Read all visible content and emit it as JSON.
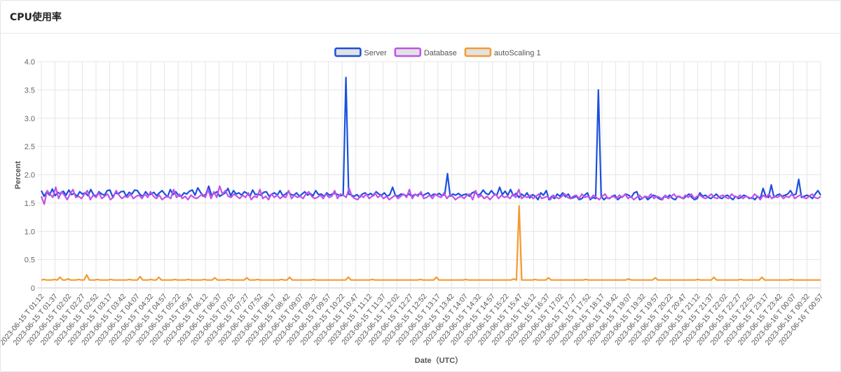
{
  "page": {
    "title": "CPU使用率"
  },
  "chart_data": {
    "type": "line",
    "xlabel": "Date（UTC）",
    "ylabel": "Percent",
    "ylim": [
      0,
      4.0
    ],
    "yticks": [
      "0",
      "0.5",
      "1.0",
      "1.5",
      "2.0",
      "2.5",
      "3.0",
      "3.5",
      "4.0"
    ],
    "grid": true,
    "legend_position": "top-center",
    "x_tick_labels": [
      "2023-06-15 T 01:12",
      "2023-06-15 T 01:37",
      "2023-06-15 T 02:02",
      "2023-06-15 T 02:27",
      "2023-06-15 T 02:52",
      "2023-06-15 T 03:17",
      "2023-06-15 T 03:42",
      "2023-06-15 T 04:07",
      "2023-06-15 T 04:32",
      "2023-06-15 T 04:57",
      "2023-06-15 T 05:22",
      "2023-06-15 T 05:47",
      "2023-06-15 T 06:12",
      "2023-06-15 T 06:37",
      "2023-06-15 T 07:02",
      "2023-06-15 T 07:27",
      "2023-06-15 T 07:52",
      "2023-06-15 T 08:17",
      "2023-06-15 T 08:42",
      "2023-06-15 T 09:07",
      "2023-06-15 T 09:32",
      "2023-06-15 T 09:57",
      "2023-06-15 T 10:22",
      "2023-06-15 T 10:47",
      "2023-06-15 T 11:12",
      "2023-06-15 T 11:37",
      "2023-06-15 T 12:02",
      "2023-06-15 T 12:27",
      "2023-06-15 T 12:52",
      "2023-06-15 T 13:17",
      "2023-06-15 T 13:42",
      "2023-06-15 T 14:07",
      "2023-06-15 T 14:32",
      "2023-06-15 T 14:57",
      "2023-06-15 T 15:22",
      "2023-06-15 T 15:47",
      "2023-06-15 T 16:12",
      "2023-06-15 T 16:37",
      "2023-06-15 T 17:02",
      "2023-06-15 T 17:27",
      "2023-06-15 T 17:52",
      "2023-06-15 T 18:17",
      "2023-06-15 T 18:42",
      "2023-06-15 T 19:07",
      "2023-06-15 T 19:32",
      "2023-06-15 T 19:57",
      "2023-06-15 T 20:22",
      "2023-06-15 T 20:47",
      "2023-06-15 T 21:12",
      "2023-06-15 T 21:37",
      "2023-06-15 T 22:02",
      "2023-06-15 T 22:27",
      "2023-06-15 T 22:52",
      "2023-06-15 T 23:17",
      "2023-06-15 T 23:42",
      "2023-06-16 T 00:07",
      "2023-06-16 T 00:32",
      "2023-06-16 T 00:57"
    ],
    "series": [
      {
        "name": "Server",
        "color": "#1a4fe0",
        "fill": "#e2e2e2",
        "values": [
          1.72,
          1.62,
          1.7,
          1.64,
          1.75,
          1.63,
          1.69,
          1.66,
          1.71,
          1.64,
          1.73,
          1.65,
          1.67,
          1.62,
          1.7,
          1.66,
          1.68,
          1.63,
          1.74,
          1.65,
          1.62,
          1.7,
          1.66,
          1.64,
          1.72,
          1.73,
          1.61,
          1.68,
          1.66,
          1.7,
          1.71,
          1.62,
          1.69,
          1.66,
          1.73,
          1.72,
          1.65,
          1.62,
          1.7,
          1.64,
          1.66,
          1.69,
          1.63,
          1.68,
          1.72,
          1.66,
          1.61,
          1.74,
          1.65,
          1.7,
          1.63,
          1.62,
          1.68,
          1.66,
          1.71,
          1.73,
          1.64,
          1.77,
          1.69,
          1.62,
          1.66,
          1.8,
          1.64,
          1.67,
          1.7,
          1.62,
          1.65,
          1.68,
          1.76,
          1.63,
          1.72,
          1.66,
          1.68,
          1.64,
          1.7,
          1.67,
          1.62,
          1.73,
          1.65,
          1.66,
          1.64,
          1.69,
          1.7,
          1.62,
          1.66,
          1.68,
          1.64,
          1.72,
          1.63,
          1.66,
          1.7,
          1.65,
          1.64,
          1.68,
          1.62,
          1.66,
          1.7,
          1.64,
          1.67,
          1.63,
          1.72,
          1.65,
          1.66,
          1.62,
          1.68,
          1.64,
          1.66,
          1.67,
          1.65,
          1.63,
          1.64,
          3.72,
          1.66,
          1.64,
          1.62,
          1.65,
          1.6,
          1.66,
          1.68,
          1.64,
          1.67,
          1.63,
          1.7,
          1.66,
          1.64,
          1.68,
          1.62,
          1.65,
          1.78,
          1.64,
          1.62,
          1.66,
          1.65,
          1.63,
          1.66,
          1.62,
          1.65,
          1.64,
          1.67,
          1.63,
          1.66,
          1.68,
          1.62,
          1.66,
          1.64,
          1.67,
          1.63,
          1.65,
          2.02,
          1.62,
          1.66,
          1.64,
          1.67,
          1.63,
          1.65,
          1.66,
          1.62,
          1.68,
          1.7,
          1.64,
          1.66,
          1.73,
          1.67,
          1.65,
          1.72,
          1.66,
          1.64,
          1.78,
          1.65,
          1.71,
          1.64,
          1.74,
          1.63,
          1.67,
          1.6,
          1.66,
          1.62,
          1.68,
          1.59,
          1.65,
          1.62,
          1.56,
          1.68,
          1.64,
          1.72,
          1.56,
          1.62,
          1.58,
          1.66,
          1.62,
          1.68,
          1.61,
          1.66,
          1.58,
          1.6,
          1.62,
          1.56,
          1.58,
          1.64,
          1.68,
          1.56,
          1.6,
          1.58,
          3.5,
          1.62,
          1.56,
          1.6,
          1.58,
          1.62,
          1.64,
          1.56,
          1.6,
          1.62,
          1.66,
          1.64,
          1.6,
          1.68,
          1.7,
          1.56,
          1.58,
          1.62,
          1.56,
          1.6,
          1.64,
          1.62,
          1.58,
          1.56,
          1.62,
          1.6,
          1.64,
          1.58,
          1.56,
          1.62,
          1.6,
          1.58,
          1.62,
          1.66,
          1.6,
          1.56,
          1.58,
          1.68,
          1.62,
          1.64,
          1.6,
          1.58,
          1.62,
          1.66,
          1.6,
          1.58,
          1.62,
          1.64,
          1.6,
          1.56,
          1.62,
          1.58,
          1.6,
          1.64,
          1.62,
          1.58,
          1.6,
          1.56,
          1.62,
          1.58,
          1.76,
          1.62,
          1.6,
          1.82,
          1.6,
          1.64,
          1.66,
          1.62,
          1.64,
          1.66,
          1.72,
          1.64,
          1.66,
          1.92,
          1.6,
          1.62,
          1.64,
          1.62,
          1.58,
          1.66,
          1.72,
          1.64
        ]
      },
      {
        "name": "Database",
        "color": "#c053e8",
        "fill": "#e2e2e2",
        "values": [
          1.62,
          1.48,
          1.72,
          1.66,
          1.6,
          1.78,
          1.58,
          1.7,
          1.64,
          1.56,
          1.66,
          1.74,
          1.6,
          1.62,
          1.58,
          1.66,
          1.72,
          1.56,
          1.64,
          1.6,
          1.68,
          1.58,
          1.62,
          1.66,
          1.56,
          1.6,
          1.72,
          1.64,
          1.58,
          1.62,
          1.6,
          1.66,
          1.58,
          1.62,
          1.64,
          1.58,
          1.66,
          1.6,
          1.7,
          1.62,
          1.58,
          1.64,
          1.56,
          1.6,
          1.62,
          1.58,
          1.74,
          1.6,
          1.66,
          1.58,
          1.62,
          1.56,
          1.64,
          1.6,
          1.58,
          1.62,
          1.66,
          1.6,
          1.74,
          1.58,
          1.7,
          1.6,
          1.8,
          1.66,
          1.72,
          1.62,
          1.6,
          1.66,
          1.62,
          1.58,
          1.64,
          1.6,
          1.68,
          1.56,
          1.62,
          1.6,
          1.74,
          1.58,
          1.62,
          1.56,
          1.66,
          1.6,
          1.64,
          1.58,
          1.62,
          1.6,
          1.72,
          1.58,
          1.64,
          1.6,
          1.62,
          1.58,
          1.66,
          1.7,
          1.62,
          1.58,
          1.6,
          1.64,
          1.58,
          1.66,
          1.6,
          1.62,
          1.72,
          1.58,
          1.66,
          1.64,
          1.6,
          1.76,
          1.62,
          1.58,
          1.56,
          1.64,
          1.6,
          1.66,
          1.58,
          1.62,
          1.68,
          1.6,
          1.64,
          1.58,
          1.62,
          1.56,
          1.6,
          1.64,
          1.58,
          1.62,
          1.66,
          1.6,
          1.74,
          1.58,
          1.66,
          1.62,
          1.7,
          1.58,
          1.6,
          1.64,
          1.58,
          1.66,
          1.62,
          1.6,
          1.68,
          1.58,
          1.64,
          1.62,
          1.56,
          1.6,
          1.62,
          1.58,
          1.64,
          1.66,
          1.56,
          1.72,
          1.6,
          1.64,
          1.58,
          1.62,
          1.56,
          1.62,
          1.66,
          1.58,
          1.64,
          1.6,
          1.62,
          1.58,
          1.66,
          1.6,
          1.74,
          1.58,
          1.62,
          1.6,
          1.64,
          1.58,
          1.62,
          1.66,
          1.58,
          1.6,
          1.62,
          1.56,
          1.64,
          1.6,
          1.58,
          1.62,
          1.66,
          1.6,
          1.58,
          1.62,
          1.64,
          1.58,
          1.66,
          1.6,
          1.62,
          1.58,
          1.64,
          1.6,
          1.56,
          1.62,
          1.66,
          1.58,
          1.6,
          1.62,
          1.58,
          1.64,
          1.6,
          1.66,
          1.58,
          1.62,
          1.56,
          1.6,
          1.64,
          1.58,
          1.62,
          1.6,
          1.66,
          1.58,
          1.62,
          1.6,
          1.56,
          1.64,
          1.58,
          1.62,
          1.66,
          1.6,
          1.62,
          1.58,
          1.64,
          1.6,
          1.66,
          1.58,
          1.62,
          1.64,
          1.6,
          1.58,
          1.62,
          1.66,
          1.6,
          1.58,
          1.62,
          1.64,
          1.6,
          1.58,
          1.66,
          1.62,
          1.6,
          1.64,
          1.58,
          1.62,
          1.6,
          1.58,
          1.66,
          1.62,
          1.56,
          1.64,
          1.6,
          1.66,
          1.58,
          1.62,
          1.6,
          1.64,
          1.58,
          1.62,
          1.6,
          1.66,
          1.58,
          1.62,
          1.64,
          1.6,
          1.58,
          1.62,
          1.66,
          1.6,
          1.58,
          1.62
        ]
      },
      {
        "name": "autoScaling 1",
        "color": "#f59a2f",
        "fill": "#e2e2e2",
        "values": [
          0.14,
          0.15,
          0.14,
          0.14,
          0.14,
          0.15,
          0.14,
          0.19,
          0.14,
          0.14,
          0.16,
          0.14,
          0.14,
          0.14,
          0.15,
          0.14,
          0.14,
          0.23,
          0.14,
          0.14,
          0.14,
          0.15,
          0.14,
          0.14,
          0.14,
          0.14,
          0.15,
          0.14,
          0.14,
          0.14,
          0.14,
          0.14,
          0.14,
          0.15,
          0.14,
          0.14,
          0.14,
          0.2,
          0.14,
          0.14,
          0.14,
          0.15,
          0.14,
          0.14,
          0.19,
          0.14,
          0.14,
          0.14,
          0.14,
          0.14,
          0.15,
          0.14,
          0.14,
          0.14,
          0.14,
          0.15,
          0.14,
          0.14,
          0.14,
          0.14,
          0.14,
          0.15,
          0.14,
          0.14,
          0.14,
          0.18,
          0.14,
          0.14,
          0.14,
          0.14,
          0.15,
          0.14,
          0.14,
          0.14,
          0.14,
          0.14,
          0.14,
          0.18,
          0.14,
          0.14,
          0.14,
          0.15,
          0.14,
          0.14,
          0.14,
          0.14,
          0.14,
          0.14,
          0.14,
          0.14,
          0.15,
          0.14,
          0.14,
          0.19,
          0.14,
          0.14,
          0.14,
          0.14,
          0.14,
          0.14,
          0.14,
          0.14,
          0.15,
          0.14,
          0.14,
          0.14,
          0.14,
          0.14,
          0.14,
          0.14,
          0.14,
          0.14,
          0.14,
          0.14,
          0.14,
          0.19,
          0.14,
          0.14,
          0.14,
          0.14,
          0.14,
          0.14,
          0.14,
          0.14,
          0.15,
          0.14,
          0.14,
          0.14,
          0.14,
          0.14,
          0.14,
          0.14,
          0.14,
          0.14,
          0.14,
          0.14,
          0.14,
          0.14,
          0.14,
          0.14,
          0.14,
          0.14,
          0.15,
          0.14,
          0.14,
          0.14,
          0.14,
          0.14,
          0.19,
          0.14,
          0.14,
          0.14,
          0.14,
          0.14,
          0.14,
          0.14,
          0.14,
          0.14,
          0.14,
          0.15,
          0.14,
          0.14,
          0.14,
          0.14,
          0.14,
          0.14,
          0.14,
          0.14,
          0.14,
          0.14,
          0.14,
          0.14,
          0.14,
          0.14,
          0.14,
          0.14,
          0.14,
          0.16,
          0.14,
          1.45,
          0.14,
          0.14,
          0.14,
          0.14,
          0.14,
          0.15,
          0.14,
          0.14,
          0.14,
          0.14,
          0.18,
          0.14,
          0.14,
          0.14,
          0.14,
          0.14,
          0.14,
          0.14,
          0.14,
          0.14,
          0.14,
          0.14,
          0.14,
          0.14,
          0.15,
          0.14,
          0.14,
          0.14,
          0.14,
          0.14,
          0.14,
          0.14,
          0.14,
          0.14,
          0.14,
          0.14,
          0.14,
          0.14,
          0.14,
          0.14,
          0.16,
          0.14,
          0.14,
          0.14,
          0.14,
          0.14,
          0.14,
          0.14,
          0.14,
          0.14,
          0.18,
          0.14,
          0.14,
          0.14,
          0.14,
          0.14,
          0.14,
          0.14,
          0.14,
          0.14,
          0.14,
          0.14,
          0.14,
          0.14,
          0.14,
          0.14,
          0.15,
          0.14,
          0.14,
          0.14,
          0.14,
          0.14,
          0.19,
          0.14,
          0.14,
          0.14,
          0.14,
          0.14,
          0.14,
          0.14,
          0.14,
          0.14,
          0.15,
          0.14,
          0.14,
          0.14,
          0.14,
          0.14,
          0.14,
          0.14,
          0.19,
          0.14,
          0.14,
          0.14,
          0.14,
          0.14,
          0.14,
          0.14,
          0.14,
          0.14,
          0.14,
          0.15,
          0.14,
          0.14,
          0.14,
          0.14,
          0.14,
          0.14,
          0.14,
          0.14,
          0.14,
          0.14,
          0.14
        ]
      }
    ]
  }
}
